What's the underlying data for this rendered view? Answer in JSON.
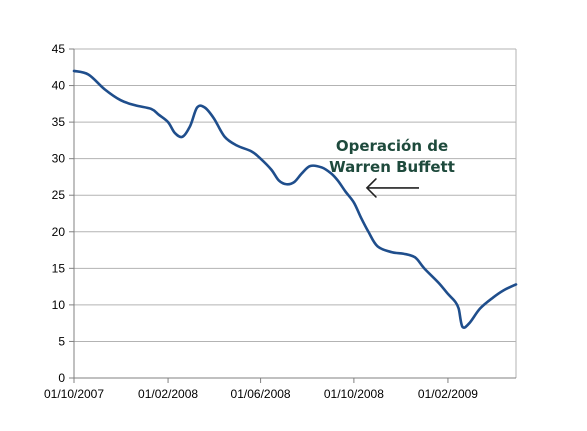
{
  "chart_data": {
    "type": "line",
    "title": "",
    "xlabel": "",
    "ylabel": "",
    "ylim": [
      0,
      45
    ],
    "xlim": [
      "2007-10-01",
      "2009-05-01"
    ],
    "y_ticks": [
      0,
      5,
      10,
      15,
      20,
      25,
      30,
      35,
      40,
      45
    ],
    "x_tick_dates": [
      "2007-10-01",
      "2008-02-01",
      "2008-06-01",
      "2008-10-01",
      "2009-02-01"
    ],
    "x_tick_labels": [
      "01/10/2007",
      "01/02/2008",
      "01/06/2008",
      "01/10/2008",
      "01/02/2009"
    ],
    "grid": "horizontal",
    "legend": "none",
    "series_color": "#1f4e8c",
    "series": [
      {
        "x": [
          "2007-10-01",
          "2007-10-20",
          "2007-11-10",
          "2007-12-01",
          "2007-12-20",
          "2008-01-10",
          "2008-01-20",
          "2008-02-01",
          "2008-02-10",
          "2008-02-20",
          "2008-03-01",
          "2008-03-10",
          "2008-03-20",
          "2008-04-01",
          "2008-04-15",
          "2008-05-01",
          "2008-05-20",
          "2008-06-01",
          "2008-06-15",
          "2008-06-25",
          "2008-07-05",
          "2008-07-15",
          "2008-07-25",
          "2008-08-05",
          "2008-08-20",
          "2008-09-01",
          "2008-09-10",
          "2008-09-20",
          "2008-10-01",
          "2008-10-10",
          "2008-10-20",
          "2008-11-01",
          "2008-11-20",
          "2008-12-05",
          "2008-12-20",
          "2009-01-01",
          "2009-01-20",
          "2009-02-01",
          "2009-02-10",
          "2009-02-15",
          "2009-02-20",
          "2009-03-01",
          "2009-03-15",
          "2009-04-01",
          "2009-04-15",
          "2009-05-01"
        ],
        "y": [
          42,
          41.5,
          39.5,
          38,
          37.3,
          36.8,
          36,
          35,
          33.5,
          33,
          34.5,
          37,
          37,
          35.5,
          33,
          31.8,
          31,
          30,
          28.5,
          27,
          26.5,
          26.8,
          28,
          29,
          28.8,
          28,
          27,
          25.5,
          24,
          22,
          20,
          18,
          17.2,
          17,
          16.5,
          15,
          13,
          11.5,
          10.5,
          9.5,
          7,
          7.5,
          9.5,
          11,
          12,
          12.8
        ]
      }
    ],
    "annotation": {
      "lines": [
        "Operación de",
        "Warren Buffett"
      ],
      "color": "#1e4a3c",
      "arrow_target_date": "2008-10-05",
      "arrow_target_value": 26
    }
  }
}
